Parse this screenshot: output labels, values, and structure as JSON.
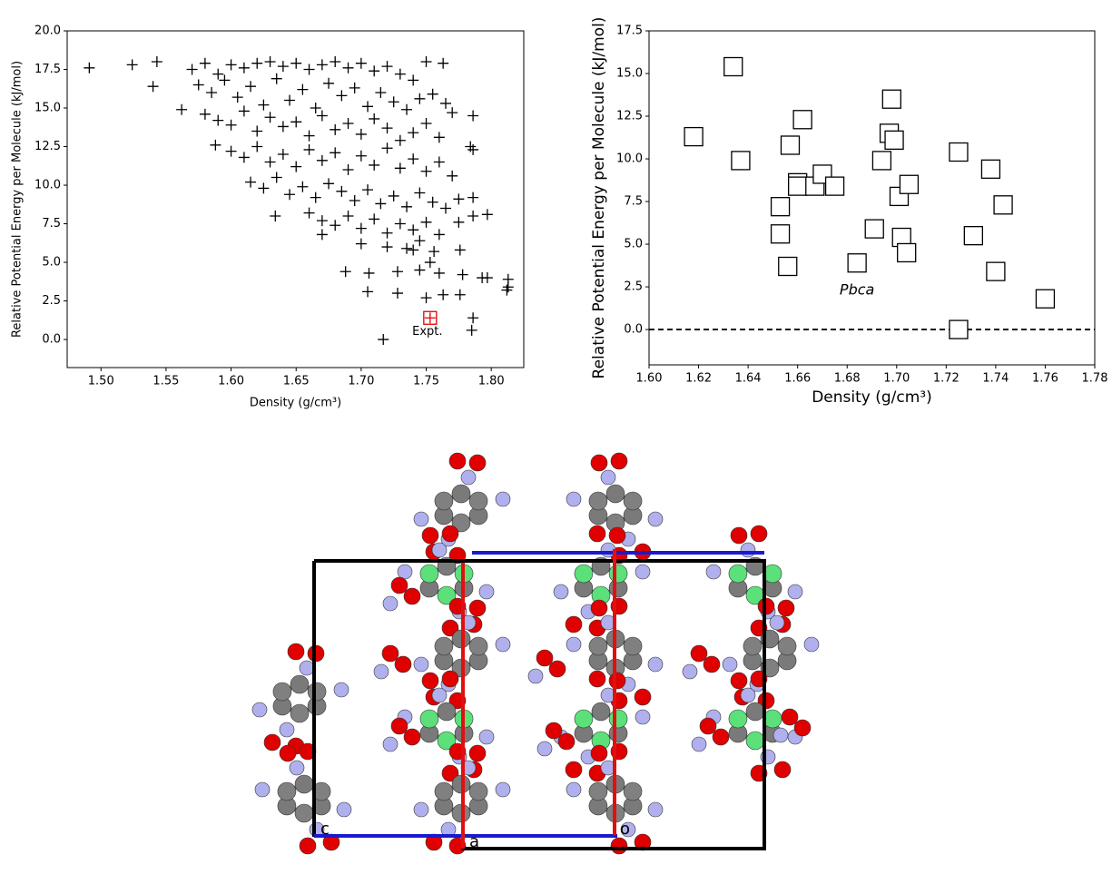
{
  "chart_data": [
    {
      "type": "scatter",
      "marker": "plus",
      "color": "#000000",
      "x_label": "Density (g/cm³)",
      "y_label": "Relative Potential Energy per Molecule (kJ/mol)",
      "xlim": [
        1.474,
        1.825
      ],
      "ylim": [
        -1.82,
        20
      ],
      "xticks": [
        {
          "value": 1.5,
          "label": "1.50"
        },
        1.55,
        {
          "value": 1.6,
          "label": "1.60"
        },
        1.65,
        {
          "value": 1.7,
          "label": "1.70"
        },
        1.75,
        {
          "value": 1.8,
          "label": "1.80"
        }
      ],
      "yticks": [
        {
          "value": 0,
          "label": "0.0"
        },
        2.5,
        {
          "value": 5,
          "label": "5.0"
        },
        7.5,
        {
          "value": 10,
          "label": "10.0"
        },
        12.5,
        {
          "value": 15,
          "label": "15.0"
        },
        17.5,
        {
          "value": 20,
          "label": "20.0"
        }
      ],
      "x": [
        1.491,
        1.524,
        1.543,
        1.54,
        1.562,
        1.634,
        1.717,
        1.785,
        1.786,
        1.812,
        1.813,
        1.813,
        1.797,
        1.793,
        1.778,
        1.786,
        1.797,
        1.786,
        1.786,
        1.784,
        1.786,
        1.763,
        1.75,
        1.705,
        1.728,
        1.75,
        1.763,
        1.776,
        1.688,
        1.706,
        1.728,
        1.745,
        1.76,
        1.753,
        1.776,
        1.756,
        1.74,
        1.57,
        1.58,
        1.59,
        1.6,
        1.61,
        1.62,
        1.63,
        1.64,
        1.65,
        1.66,
        1.67,
        1.68,
        1.69,
        1.7,
        1.71,
        1.72,
        1.73,
        1.74,
        1.575,
        1.585,
        1.595,
        1.605,
        1.615,
        1.625,
        1.635,
        1.645,
        1.655,
        1.665,
        1.675,
        1.685,
        1.695,
        1.705,
        1.715,
        1.725,
        1.735,
        1.745,
        1.755,
        1.765,
        1.58,
        1.59,
        1.6,
        1.61,
        1.62,
        1.63,
        1.64,
        1.65,
        1.66,
        1.67,
        1.68,
        1.69,
        1.7,
        1.71,
        1.72,
        1.73,
        1.74,
        1.75,
        1.76,
        1.77,
        1.588,
        1.6,
        1.61,
        1.62,
        1.63,
        1.64,
        1.65,
        1.66,
        1.67,
        1.68,
        1.69,
        1.7,
        1.71,
        1.72,
        1.73,
        1.74,
        1.75,
        1.76,
        1.77,
        1.615,
        1.625,
        1.635,
        1.645,
        1.655,
        1.665,
        1.675,
        1.685,
        1.695,
        1.705,
        1.715,
        1.725,
        1.735,
        1.745,
        1.755,
        1.765,
        1.775,
        1.66,
        1.67,
        1.68,
        1.69,
        1.7,
        1.71,
        1.72,
        1.73,
        1.74,
        1.75,
        1.76,
        1.775,
        1.67,
        1.7,
        1.72,
        1.735,
        1.745
      ],
      "values": [
        17.6,
        17.8,
        18.0,
        16.4,
        14.9,
        8.0,
        0.0,
        0.6,
        1.4,
        3.2,
        3.4,
        3.9,
        4.0,
        4.0,
        4.2,
        8.0,
        8.1,
        9.2,
        12.3,
        12.5,
        14.5,
        17.9,
        18.0,
        3.1,
        3.0,
        2.7,
        2.9,
        2.9,
        4.4,
        4.3,
        4.4,
        4.5,
        4.3,
        5.0,
        5.8,
        5.7,
        5.8,
        17.5,
        17.9,
        17.2,
        17.8,
        17.6,
        17.9,
        18.0,
        17.7,
        17.9,
        17.5,
        17.8,
        18.0,
        17.6,
        17.9,
        17.4,
        17.7,
        17.2,
        16.8,
        16.5,
        16.0,
        16.8,
        15.7,
        16.4,
        15.2,
        16.9,
        15.5,
        16.2,
        15.0,
        16.6,
        15.8,
        16.3,
        15.1,
        16.0,
        15.4,
        14.9,
        15.6,
        15.9,
        15.3,
        14.6,
        14.2,
        13.9,
        14.8,
        13.5,
        14.4,
        13.8,
        14.1,
        13.2,
        14.5,
        13.6,
        14.0,
        13.3,
        14.3,
        13.7,
        12.9,
        13.4,
        14.0,
        13.1,
        14.7,
        12.6,
        12.2,
        11.8,
        12.5,
        11.5,
        12.0,
        11.2,
        12.3,
        11.6,
        12.1,
        11.0,
        11.9,
        11.3,
        12.4,
        11.1,
        11.7,
        10.9,
        11.5,
        10.6,
        10.2,
        9.8,
        10.5,
        9.4,
        9.9,
        9.2,
        10.1,
        9.6,
        9.0,
        9.7,
        8.8,
        9.3,
        8.6,
        9.5,
        8.9,
        8.5,
        9.1,
        8.2,
        7.7,
        7.4,
        8.0,
        7.2,
        7.8,
        6.9,
        7.5,
        7.1,
        7.6,
        6.8,
        7.6,
        6.8,
        6.2,
        6.0,
        5.9,
        6.4
      ],
      "highlight": {
        "x": 1.753,
        "y": 1.4,
        "color": "#e00000",
        "label": "Expt."
      }
    },
    {
      "type": "scatter",
      "marker": "square",
      "color": "#000000",
      "x_label": "Density (g/cm³)",
      "y_label": "Relative Potential Energy per Molecule (kJ/mol)",
      "xlim": [
        1.6,
        1.78
      ],
      "ylim": [
        -2.07,
        17.5
      ],
      "xticks": [
        {
          "value": 1.6,
          "label": "1.60"
        },
        1.62,
        1.64,
        1.66,
        1.68,
        {
          "value": 1.7,
          "label": "1.70"
        },
        1.72,
        1.74,
        1.76,
        1.78
      ],
      "yticks": [
        {
          "value": 0,
          "label": "0.0"
        },
        2.5,
        {
          "value": 5,
          "label": "5.0"
        },
        7.5,
        {
          "value": 10,
          "label": "10.0"
        },
        12.5,
        {
          "value": 15,
          "label": "15.0"
        },
        17.5
      ],
      "x": [
        1.618,
        1.634,
        1.637,
        1.653,
        1.653,
        1.656,
        1.657,
        1.66,
        1.66,
        1.662,
        1.667,
        1.67,
        1.675,
        1.684,
        1.691,
        1.694,
        1.697,
        1.698,
        1.699,
        1.701,
        1.702,
        1.704,
        1.705,
        1.725,
        1.725,
        1.731,
        1.738,
        1.74,
        1.743,
        1.76
      ],
      "values": [
        11.3,
        15.4,
        9.9,
        7.2,
        5.6,
        3.7,
        10.8,
        8.6,
        8.4,
        12.3,
        8.4,
        9.1,
        8.4,
        3.9,
        5.9,
        9.9,
        11.5,
        13.5,
        11.1,
        7.8,
        5.4,
        4.5,
        8.5,
        10.4,
        0.0,
        5.5,
        9.4,
        3.4,
        7.3,
        1.8
      ],
      "hline": 0,
      "annotation": {
        "x": 1.684,
        "y": 2.3,
        "text": "Pbca"
      }
    }
  ],
  "structure": {
    "axis_labels": [
      "c",
      "a",
      "o"
    ]
  }
}
